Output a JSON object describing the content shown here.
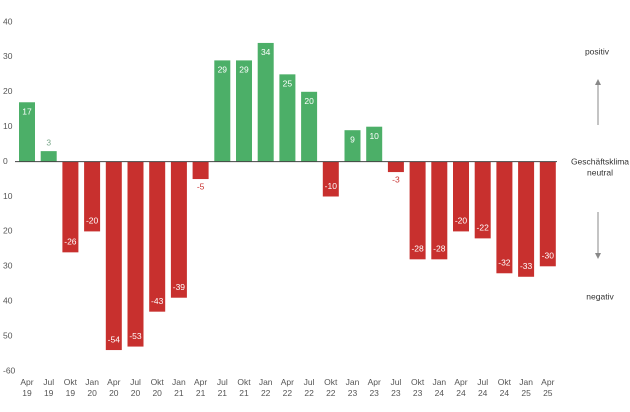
{
  "chart_data": {
    "type": "bar",
    "categories": [
      "Apr 19",
      "Jul 19",
      "Okt 19",
      "Jan 20",
      "Apr 20",
      "Jul 20",
      "Okt 20",
      "Jan 21",
      "Apr 21",
      "Jul 21",
      "Okt 21",
      "Jan 22",
      "Apr 22",
      "Jul 22",
      "Okt 22",
      "Jan 23",
      "Apr 23",
      "Jul 23",
      "Okt 23",
      "Jan 24",
      "Apr 24",
      "Jul 24",
      "Okt 24",
      "Jan 25",
      "Apr 25"
    ],
    "values": [
      17,
      3,
      -26,
      -20,
      -54,
      -53,
      -43,
      -39,
      -5,
      29,
      29,
      34,
      25,
      20,
      -10,
      9,
      10,
      -3,
      -28,
      -28,
      -20,
      -22,
      -32,
      -33,
      -30
    ],
    "positive_color": "#4caf68",
    "negative_color": "#c8302e",
    "ylim": [
      -60,
      40
    ],
    "yticks": [
      40,
      30,
      20,
      10,
      0,
      {
        "value": -10,
        "label": "10"
      },
      {
        "value": -20,
        "label": "20"
      },
      {
        "value": -30,
        "label": "30"
      },
      {
        "value": -40,
        "label": "40"
      },
      {
        "value": -50,
        "label": "50"
      },
      -60
    ],
    "annotations": {
      "top": "positiv",
      "middle": [
        "Geschäftsklima",
        "neutral"
      ],
      "bottom": "negativ"
    }
  }
}
